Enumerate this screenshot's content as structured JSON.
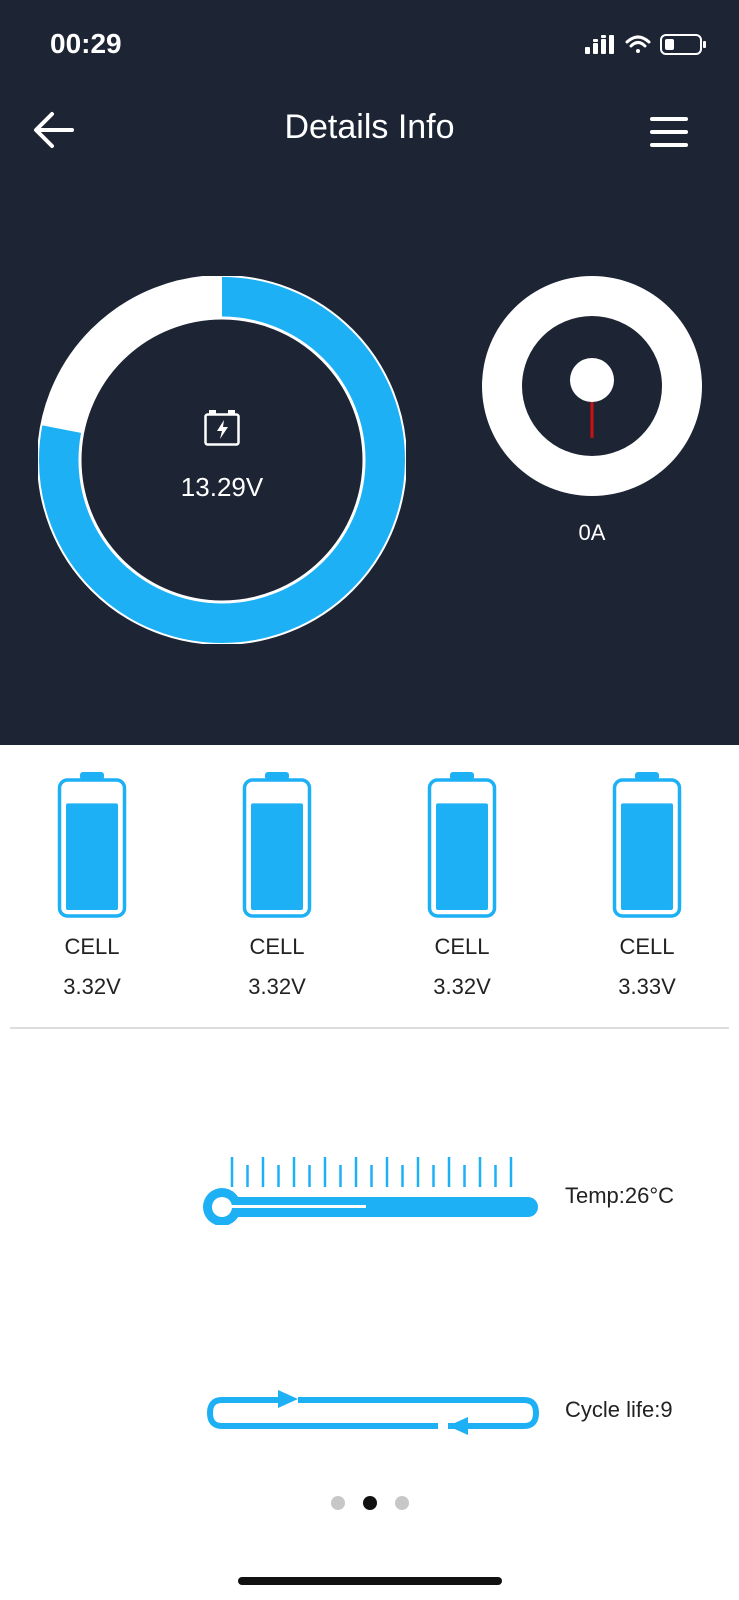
{
  "status_bar": {
    "time": "00:29",
    "signal_icon": "cellular-signal-icon",
    "wifi_icon": "wifi-icon",
    "battery_icon": "battery-low-icon"
  },
  "header": {
    "title": "Details Info",
    "back_icon": "arrow-left-icon",
    "menu_icon": "hamburger-menu-icon"
  },
  "voltage_gauge": {
    "value_text": "13.29V",
    "level_fraction": 0.78,
    "icon": "battery-charge-icon",
    "fill_color": "#1eb0f5",
    "track_color": "#ffffff"
  },
  "current_gauge": {
    "value_text": "0A",
    "needle_color": "#cc1111"
  },
  "cells": [
    {
      "label": "CELL",
      "voltage": "3.32V",
      "level_fraction": 0.82
    },
    {
      "label": "CELL",
      "voltage": "3.32V",
      "level_fraction": 0.82
    },
    {
      "label": "CELL",
      "voltage": "3.32V",
      "level_fraction": 0.82
    },
    {
      "label": "CELL",
      "voltage": "3.33V",
      "level_fraction": 0.82
    }
  ],
  "temperature": {
    "text": "Temp:26°C",
    "icon": "thermometer-icon"
  },
  "cycle": {
    "text": "Cycle life:9",
    "icon": "cycle-arrows-icon"
  },
  "pager": {
    "count": 3,
    "active_index": 1
  },
  "colors": {
    "accent": "#1eb0f5",
    "dark_bg": "#1d2434",
    "text_dark": "#222222"
  }
}
